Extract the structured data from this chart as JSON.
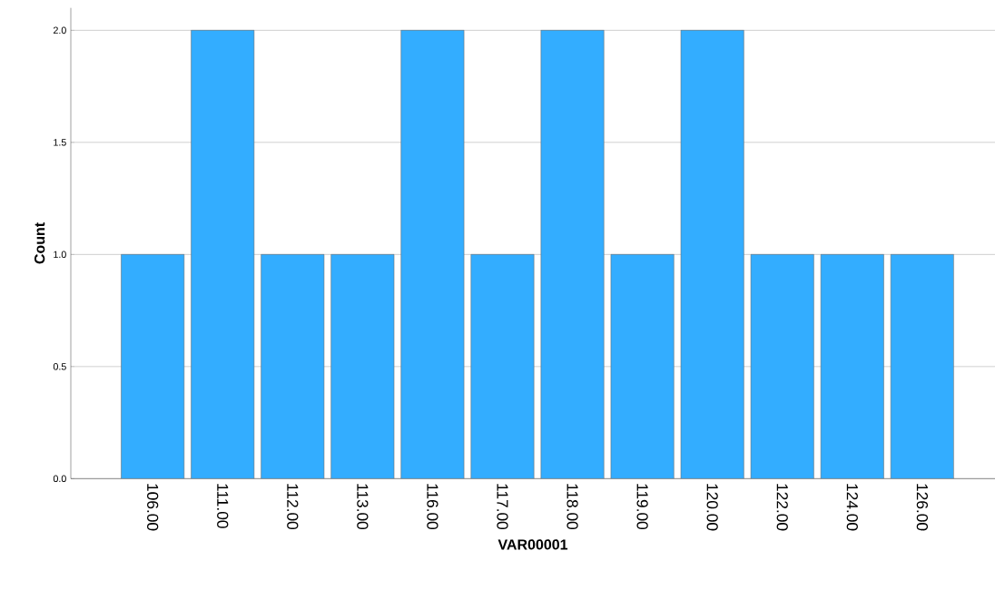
{
  "chart_data": {
    "type": "bar",
    "xlabel": "VAR00001",
    "ylabel": "Count",
    "categories": [
      "106.00",
      "111.00",
      "112.00",
      "113.00",
      "116.00",
      "117.00",
      "118.00",
      "119.00",
      "120.00",
      "122.00",
      "124.00",
      "126.00"
    ],
    "values": [
      1,
      2,
      1,
      1,
      2,
      1,
      2,
      1,
      2,
      1,
      1,
      1
    ],
    "color": "#33adff",
    "ylim": [
      0,
      2.1
    ],
    "yticks": [
      {
        "value": 0,
        "label": "0.0"
      },
      {
        "value": 0.5,
        "label": "0.5"
      },
      {
        "value": 1,
        "label": "1.0"
      },
      {
        "value": 1.5,
        "label": "1.5"
      },
      {
        "value": 2,
        "label": "2.0"
      }
    ],
    "grid": "y"
  }
}
